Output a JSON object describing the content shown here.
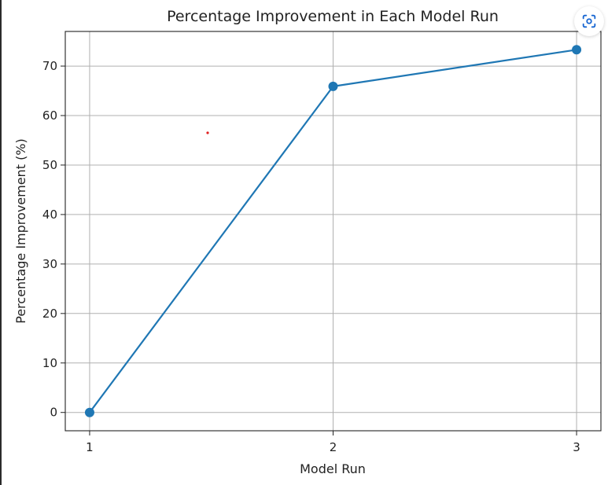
{
  "chart_data": {
    "type": "line",
    "title": "Percentage Improvement in Each Model Run",
    "xlabel": "Model Run",
    "ylabel": "Percentage Improvement (%)",
    "x": [
      1,
      2,
      3
    ],
    "xticks": [
      "1",
      "2",
      "3"
    ],
    "xlim": [
      0.9,
      3.1
    ],
    "yticks": [
      0,
      10,
      20,
      30,
      40,
      50,
      60,
      70
    ],
    "ylim": [
      -3.7,
      77.0
    ],
    "grid": true,
    "series": [
      {
        "values": [
          0,
          65.9,
          73.3
        ],
        "color": "#1f77b4",
        "marker": "circle"
      }
    ]
  },
  "ui": {
    "view_image_icon": "focus-scan-icon",
    "accent": "#1967d2"
  }
}
